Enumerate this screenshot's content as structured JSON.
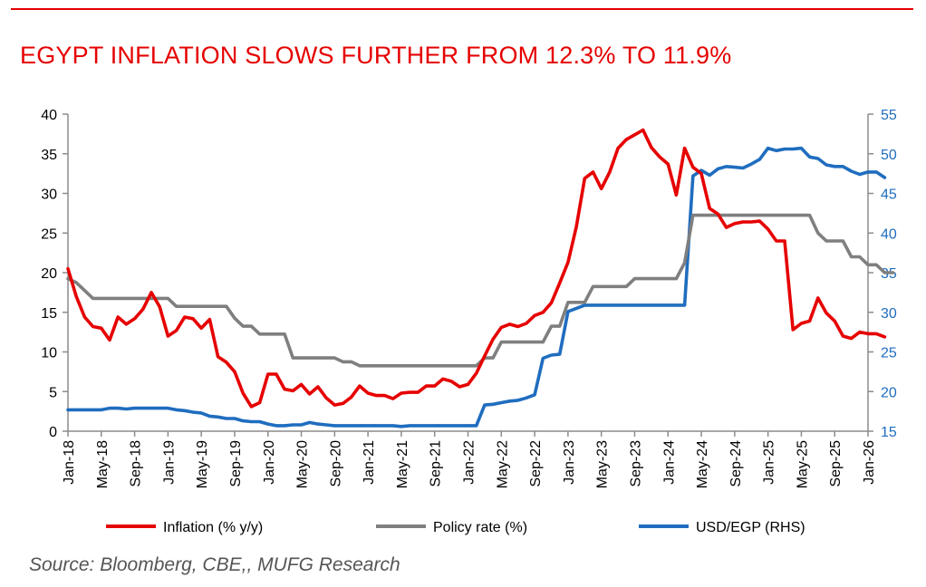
{
  "title": "EGYPT INFLATION SLOWS FURTHER FROM 12.3% TO 11.9%",
  "source": "Source: Bloomberg, CBE,, MUFG Research",
  "colors": {
    "inflation": "#e60000",
    "policy": "#7f7f7f",
    "usd": "#1f6dbf",
    "axis": "#8c8c8c"
  },
  "chart_data": {
    "type": "line",
    "x_tick_labels": [
      "Jan-18",
      "May-18",
      "Sep-18",
      "Jan-19",
      "May-19",
      "Sep-19",
      "Jan-20",
      "May-20",
      "Sep-20",
      "Jan-21",
      "May-21",
      "Sep-21",
      "Jan-22",
      "May-22",
      "Sep-22",
      "Jan-23",
      "May-23",
      "Sep-23",
      "Jan-24",
      "May-24",
      "Sep-24",
      "Jan-25",
      "May-25",
      "Sep-25",
      "Jan-26"
    ],
    "x_start": "Jan-18",
    "x_end": "Jan-26",
    "y_left": {
      "min": 0,
      "max": 40,
      "ticks": [
        "0",
        "5",
        "10",
        "15",
        "20",
        "25",
        "30",
        "35",
        "40"
      ]
    },
    "y_right": {
      "min": 15,
      "max": 55,
      "ticks": [
        "15",
        "20",
        "25",
        "30",
        "35",
        "40",
        "45",
        "50",
        "55"
      ]
    },
    "legend_placement": "bottom",
    "series": [
      {
        "name": "Inflation (% y/y)",
        "axis": "left",
        "values": [
          20.5,
          17.0,
          14.4,
          13.2,
          13.0,
          11.5,
          14.4,
          13.5,
          14.2,
          15.4,
          17.5,
          15.7,
          12.0,
          12.7,
          14.4,
          14.2,
          13.0,
          14.1,
          9.4,
          8.7,
          7.5,
          4.8,
          3.1,
          3.6,
          7.2,
          7.2,
          5.3,
          5.1,
          5.9,
          4.7,
          5.6,
          4.2,
          3.3,
          3.5,
          4.3,
          5.7,
          4.8,
          4.5,
          4.5,
          4.1,
          4.8,
          4.9,
          4.9,
          5.7,
          5.7,
          6.6,
          6.3,
          5.6,
          5.9,
          7.3,
          9.5,
          11.6,
          13.1,
          13.5,
          13.2,
          13.6,
          14.6,
          15.0,
          16.2,
          18.7,
          21.3,
          25.8,
          31.9,
          32.7,
          30.6,
          32.7,
          35.7,
          36.8,
          37.4,
          38.0,
          35.8,
          34.6,
          33.7,
          29.8,
          35.7,
          33.3,
          32.5,
          28.1,
          27.4,
          25.7,
          26.2,
          26.4,
          26.4,
          26.5,
          25.5,
          24.0,
          24.0,
          12.8,
          13.6,
          13.9,
          16.8,
          14.9,
          13.9,
          12.0,
          11.7,
          12.5,
          12.3,
          12.3,
          11.9
        ],
        "last_label": "11.9"
      },
      {
        "name": "Policy rate (%)",
        "axis": "left",
        "values": [
          19.25,
          18.75,
          17.75,
          16.75,
          16.75,
          16.75,
          16.75,
          16.75,
          16.75,
          16.75,
          16.75,
          16.75,
          16.75,
          15.75,
          15.75,
          15.75,
          15.75,
          15.75,
          15.75,
          15.75,
          14.25,
          13.25,
          13.25,
          12.25,
          12.25,
          12.25,
          12.25,
          9.25,
          9.25,
          9.25,
          9.25,
          9.25,
          9.25,
          8.75,
          8.75,
          8.25,
          8.25,
          8.25,
          8.25,
          8.25,
          8.25,
          8.25,
          8.25,
          8.25,
          8.25,
          8.25,
          8.25,
          8.25,
          8.25,
          8.25,
          9.25,
          9.25,
          11.25,
          11.25,
          11.25,
          11.25,
          11.25,
          11.25,
          13.25,
          13.25,
          16.25,
          16.25,
          16.25,
          18.25,
          18.25,
          18.25,
          18.25,
          18.25,
          19.25,
          19.25,
          19.25,
          19.25,
          19.25,
          19.25,
          21.25,
          27.25,
          27.25,
          27.25,
          27.25,
          27.25,
          27.25,
          27.25,
          27.25,
          27.25,
          27.25,
          27.25,
          27.25,
          27.25,
          27.25,
          27.25,
          25.0,
          24.0,
          24.0,
          24.0,
          22.0,
          22.0,
          21.0,
          21.0,
          20.0,
          20.0
        ],
        "last_label": "20.0"
      },
      {
        "name": "USD/EGP (RHS)",
        "axis": "right",
        "values": [
          17.7,
          17.7,
          17.7,
          17.7,
          17.7,
          17.9,
          17.9,
          17.8,
          17.9,
          17.9,
          17.9,
          17.9,
          17.9,
          17.7,
          17.6,
          17.4,
          17.3,
          16.9,
          16.8,
          16.6,
          16.6,
          16.3,
          16.2,
          16.2,
          15.9,
          15.7,
          15.7,
          15.8,
          15.8,
          16.1,
          15.9,
          15.8,
          15.7,
          15.7,
          15.7,
          15.7,
          15.7,
          15.7,
          15.7,
          15.7,
          15.6,
          15.7,
          15.7,
          15.7,
          15.7,
          15.7,
          15.7,
          15.7,
          15.7,
          15.7,
          18.3,
          18.4,
          18.6,
          18.8,
          18.9,
          19.2,
          19.6,
          24.2,
          24.6,
          24.7,
          30.1,
          30.5,
          30.9,
          30.9,
          30.9,
          30.9,
          30.9,
          30.9,
          30.9,
          30.9,
          30.9,
          30.9,
          30.9,
          30.9,
          30.9,
          47.2,
          47.9,
          47.3,
          48.1,
          48.4,
          48.3,
          48.2,
          48.7,
          49.3,
          50.7,
          50.4,
          50.6,
          50.6,
          50.7,
          49.6,
          49.4,
          48.6,
          48.4,
          48.4,
          47.8,
          47.4,
          47.7,
          47.7,
          47.0
        ],
        "last_label": "47.0"
      }
    ]
  }
}
